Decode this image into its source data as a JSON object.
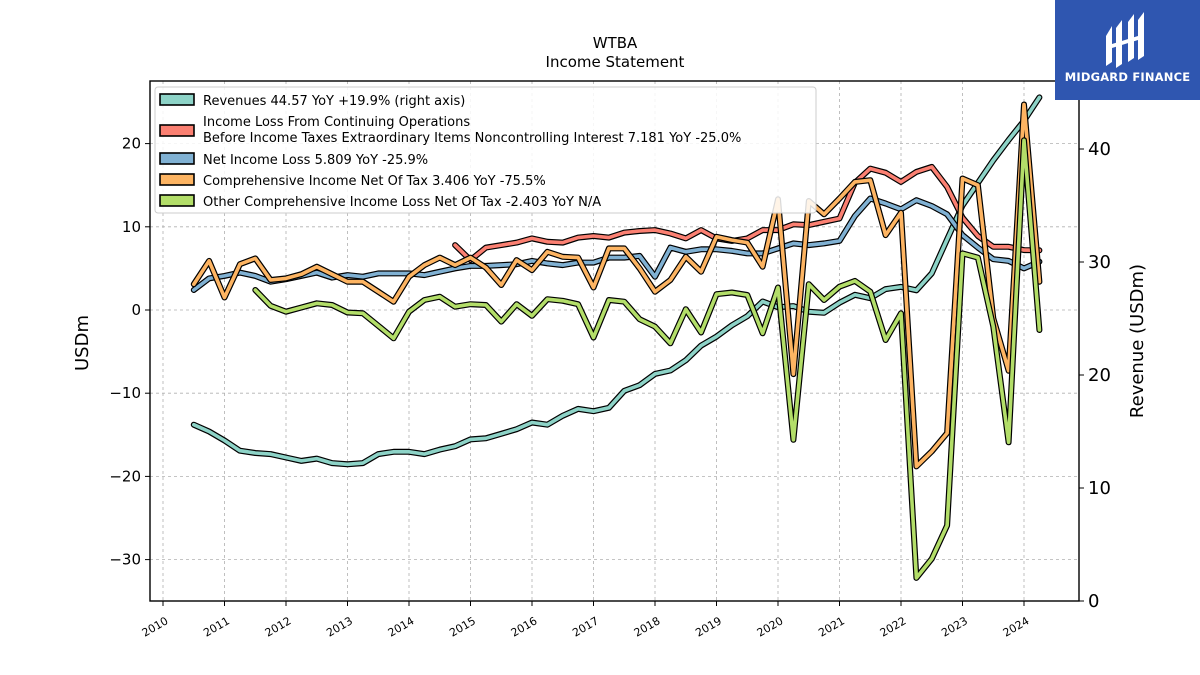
{
  "chart_data": {
    "type": "line",
    "title": "WTBA",
    "subtitle": "Income Statement",
    "ylabel": "USDm",
    "y2label": "Revenue (USDm)",
    "ylim": [
      -35,
      27
    ],
    "y2lim": [
      0,
      46
    ],
    "xlim": [
      2009.9,
      2024.9
    ],
    "yticks": [
      "20",
      "10",
      "0",
      "−10",
      "−20",
      "−30"
    ],
    "y2ticks": [
      "40",
      "30",
      "20",
      "10",
      "0"
    ],
    "xticks": [
      "2010",
      "2011",
      "2012",
      "2013",
      "2014",
      "2015",
      "2016",
      "2017",
      "2018",
      "2019",
      "2020",
      "2021",
      "2022",
      "2023",
      "2024"
    ],
    "grid": true,
    "legend_position": "top-left",
    "series": [
      {
        "name": "Revenues  44.57 YoY +19.9% (right axis)",
        "color": "#8dd3c7",
        "axis": "right",
        "x": [
          2010.5,
          2010.75,
          2011.0,
          2011.25,
          2011.5,
          2011.75,
          2012.0,
          2012.25,
          2012.5,
          2012.75,
          2013.0,
          2013.25,
          2013.5,
          2013.75,
          2014.0,
          2014.25,
          2014.5,
          2014.75,
          2015.0,
          2015.25,
          2015.5,
          2015.75,
          2016.0,
          2016.25,
          2016.5,
          2016.75,
          2017.0,
          2017.25,
          2017.5,
          2017.75,
          2018.0,
          2018.25,
          2018.5,
          2018.75,
          2019.0,
          2019.25,
          2019.5,
          2019.75,
          2020.0,
          2020.25,
          2020.5,
          2020.75,
          2021.0,
          2021.25,
          2021.5,
          2021.75,
          2022.0,
          2022.25,
          2022.5,
          2022.75,
          2023.0,
          2023.25,
          2023.5,
          2023.75,
          2024.0,
          2024.25
        ],
        "values": [
          15.6,
          15.0,
          14.2,
          13.3,
          13.1,
          13.0,
          12.7,
          12.4,
          12.6,
          12.2,
          12.1,
          12.2,
          13.0,
          13.2,
          13.2,
          13.0,
          13.4,
          13.7,
          14.3,
          14.4,
          14.8,
          15.2,
          15.8,
          15.6,
          16.4,
          17.0,
          16.8,
          17.1,
          18.6,
          19.1,
          20.1,
          20.4,
          21.3,
          22.6,
          23.4,
          24.4,
          25.2,
          26.5,
          26.0,
          26.1,
          25.6,
          25.5,
          26.4,
          27.1,
          26.8,
          27.6,
          27.8,
          27.5,
          29.0,
          32.0,
          35.0,
          37.0,
          39.0,
          40.8,
          42.5,
          44.57
        ]
      },
      {
        "name": "Income Loss From Continuing Operations\nBefore Income Taxes Extraordinary Items Noncontrolling Interest  7.181 YoY -25.0%",
        "label_lines": [
          "Income Loss From Continuing Operations",
          "Before Income Taxes Extraordinary Items Noncontrolling Interest  7.181 YoY -25.0%"
        ],
        "color": "#fb8072",
        "axis": "left",
        "x": [
          2014.75,
          2015.0,
          2015.25,
          2015.5,
          2015.75,
          2016.0,
          2016.25,
          2016.5,
          2016.75,
          2017.0,
          2017.25,
          2017.5,
          2017.75,
          2018.0,
          2018.25,
          2018.5,
          2018.75,
          2019.0,
          2019.25,
          2019.5,
          2019.75,
          2020.0,
          2020.25,
          2020.5,
          2020.75,
          2021.0,
          2021.25,
          2021.5,
          2021.75,
          2022.0,
          2022.25,
          2022.5,
          2022.75,
          2023.0,
          2023.25,
          2023.5,
          2023.75,
          2024.0,
          2024.25
        ],
        "values": [
          7.8,
          6.0,
          7.5,
          7.8,
          8.1,
          8.6,
          8.2,
          8.1,
          8.7,
          8.9,
          8.7,
          9.3,
          9.5,
          9.6,
          9.2,
          8.6,
          9.6,
          8.6,
          8.3,
          8.6,
          9.6,
          9.6,
          10.3,
          10.2,
          10.6,
          11.0,
          15.3,
          17.0,
          16.5,
          15.4,
          16.6,
          17.2,
          14.8,
          11.1,
          8.9,
          7.6,
          7.6,
          7.2,
          7.181
        ]
      },
      {
        "name": "Net Income Loss  5.809 YoY -25.9%",
        "color": "#80b1d3",
        "axis": "left",
        "x": [
          2010.5,
          2010.75,
          2011.0,
          2011.25,
          2011.5,
          2011.75,
          2012.0,
          2012.25,
          2012.5,
          2012.75,
          2013.0,
          2013.25,
          2013.5,
          2013.75,
          2014.0,
          2014.25,
          2014.5,
          2014.75,
          2015.0,
          2015.25,
          2015.5,
          2015.75,
          2016.0,
          2016.25,
          2016.5,
          2016.75,
          2017.0,
          2017.25,
          2017.5,
          2017.75,
          2018.0,
          2018.25,
          2018.5,
          2018.75,
          2019.0,
          2019.25,
          2019.5,
          2019.75,
          2020.0,
          2020.25,
          2020.5,
          2020.75,
          2021.0,
          2021.25,
          2021.5,
          2021.75,
          2022.0,
          2022.25,
          2022.5,
          2022.75,
          2023.0,
          2023.25,
          2023.5,
          2023.75,
          2024.0,
          2024.25
        ],
        "values": [
          2.4,
          3.8,
          4.1,
          4.5,
          4.1,
          3.4,
          3.7,
          4.1,
          4.5,
          3.9,
          4.2,
          4.0,
          4.4,
          4.4,
          4.4,
          4.2,
          4.6,
          5.0,
          5.3,
          5.3,
          5.4,
          5.5,
          5.9,
          5.6,
          5.4,
          5.7,
          5.7,
          6.3,
          6.3,
          6.5,
          4.0,
          7.5,
          7.0,
          7.3,
          7.3,
          7.1,
          6.8,
          6.8,
          7.4,
          8.0,
          7.8,
          8.0,
          8.3,
          11.3,
          13.4,
          12.8,
          12.1,
          13.2,
          12.5,
          11.5,
          9.0,
          7.5,
          6.1,
          5.9,
          5.0,
          5.809
        ]
      },
      {
        "name": "Comprehensive Income Net Of Tax  3.406 YoY -75.5%",
        "color": "#fdb462",
        "axis": "left",
        "x": [
          2010.5,
          2010.75,
          2011.0,
          2011.25,
          2011.5,
          2011.75,
          2012.0,
          2012.25,
          2012.5,
          2012.75,
          2013.0,
          2013.25,
          2013.5,
          2013.75,
          2014.0,
          2014.25,
          2014.5,
          2014.75,
          2015.0,
          2015.25,
          2015.5,
          2015.75,
          2016.0,
          2016.25,
          2016.5,
          2016.75,
          2017.0,
          2017.25,
          2017.5,
          2017.75,
          2018.0,
          2018.25,
          2018.5,
          2018.75,
          2019.0,
          2019.25,
          2019.5,
          2019.75,
          2020.0,
          2020.25,
          2020.5,
          2020.75,
          2021.0,
          2021.25,
          2021.5,
          2021.75,
          2022.0,
          2022.25,
          2022.5,
          2022.75,
          2023.0,
          2023.25,
          2023.5,
          2023.75,
          2024.0,
          2024.25
        ],
        "values": [
          3.1,
          5.9,
          1.5,
          5.5,
          6.2,
          3.6,
          3.8,
          4.3,
          5.2,
          4.3,
          3.4,
          3.4,
          2.2,
          1.0,
          4.0,
          5.4,
          6.3,
          5.4,
          6.3,
          5.1,
          3.0,
          6.0,
          4.8,
          7.0,
          6.4,
          6.3,
          2.7,
          7.4,
          7.4,
          5.0,
          2.2,
          3.6,
          6.4,
          4.6,
          8.8,
          8.4,
          8.1,
          5.2,
          13.3,
          -7.7,
          13.1,
          11.5,
          13.4,
          15.4,
          15.6,
          9.0,
          11.7,
          -18.8,
          -17.0,
          -14.8,
          15.8,
          15.0,
          -1.0,
          -7.3,
          24.7,
          3.406
        ]
      },
      {
        "name": "Other Comprehensive Income Loss Net Of Tax  -2.403 YoY N/A",
        "color": "#b3de69",
        "axis": "left",
        "x": [
          2011.5,
          2011.75,
          2012.0,
          2012.25,
          2012.5,
          2012.75,
          2013.0,
          2013.25,
          2013.5,
          2013.75,
          2014.0,
          2014.25,
          2014.5,
          2014.75,
          2015.0,
          2015.25,
          2015.5,
          2015.75,
          2016.0,
          2016.25,
          2016.5,
          2016.75,
          2017.0,
          2017.25,
          2017.5,
          2017.75,
          2018.0,
          2018.25,
          2018.5,
          2018.75,
          2019.0,
          2019.25,
          2019.5,
          2019.75,
          2020.0,
          2020.25,
          2020.5,
          2020.75,
          2021.0,
          2021.25,
          2021.5,
          2021.75,
          2022.0,
          2022.25,
          2022.5,
          2022.75,
          2023.0,
          2023.25,
          2023.5,
          2023.75,
          2024.0,
          2024.25
        ],
        "values": [
          2.4,
          0.5,
          -0.2,
          0.3,
          0.8,
          0.6,
          -0.3,
          -0.4,
          -1.9,
          -3.4,
          -0.2,
          1.2,
          1.6,
          0.4,
          0.7,
          0.6,
          -1.4,
          0.7,
          -0.7,
          1.3,
          1.1,
          0.7,
          -3.3,
          1.2,
          1.0,
          -1.1,
          -2.0,
          -4.0,
          0.1,
          -2.7,
          1.9,
          2.1,
          1.8,
          -2.8,
          2.7,
          -15.6,
          3.1,
          1.2,
          2.8,
          3.5,
          2.2,
          -3.6,
          -0.4,
          -32.2,
          -29.9,
          -25.9,
          6.8,
          6.3,
          -2.0,
          -15.9,
          20.4,
          -2.403
        ]
      }
    ]
  },
  "logo": {
    "text": "MIDGARD FINANCE"
  }
}
